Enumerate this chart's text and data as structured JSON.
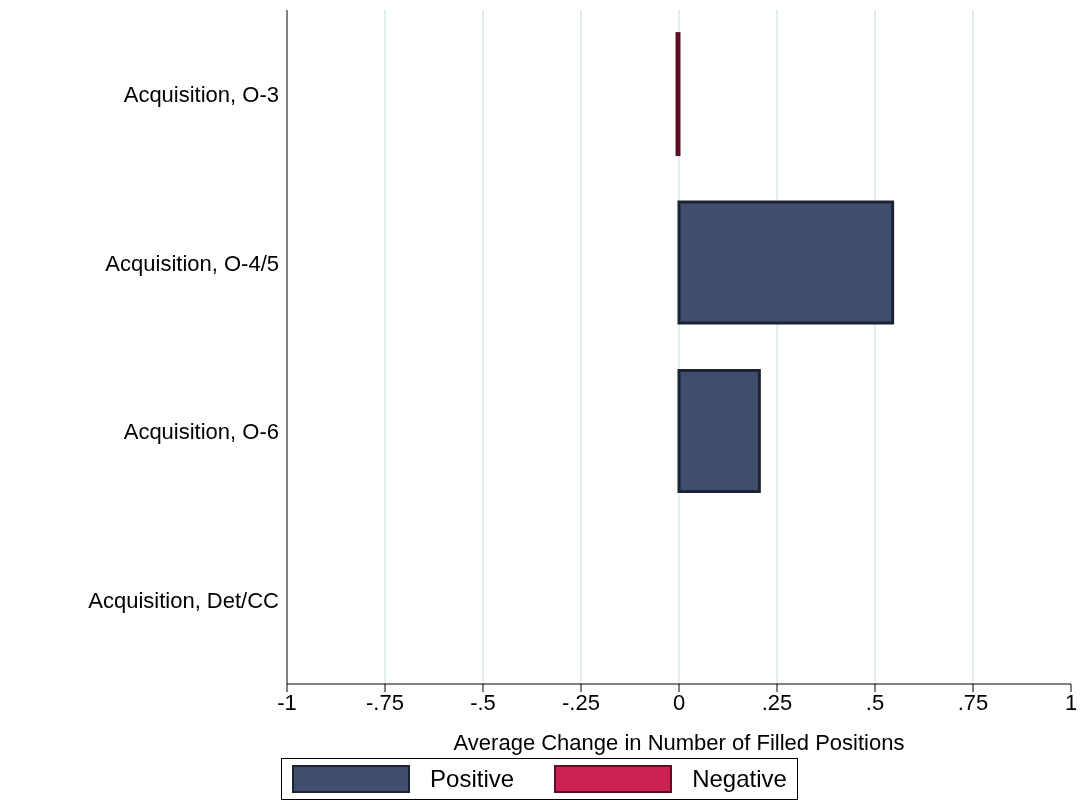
{
  "chart_data": {
    "type": "bar",
    "orientation": "horizontal",
    "stacked": true,
    "xlabel": "Average Change in Number of Filled Positions",
    "categories": [
      "Acquisition, O-3",
      "Acquisition, O-4/5",
      "Acquisition, O-6",
      "Acquisition, Det/CC"
    ],
    "series": [
      {
        "name": "Positive",
        "color": "#3f4e6e",
        "values": [
          null,
          0.545,
          0.205,
          null
        ]
      },
      {
        "name": "Negative",
        "color": "#cc2251",
        "values": [
          -0.005,
          null,
          null,
          null
        ]
      }
    ],
    "xlim": [
      -1,
      1
    ],
    "xticks": [
      {
        "value": -1,
        "label": "-1"
      },
      {
        "value": -0.75,
        "label": "-.75"
      },
      {
        "value": -0.5,
        "label": "-.5"
      },
      {
        "value": -0.25,
        "label": "-.25"
      },
      0,
      {
        "value": 0.25,
        "label": ".25"
      },
      {
        "value": 0.5,
        "label": ".5"
      },
      {
        "value": 0.75,
        "label": ".75"
      },
      1
    ],
    "grid": "x",
    "legend": "bottom"
  }
}
